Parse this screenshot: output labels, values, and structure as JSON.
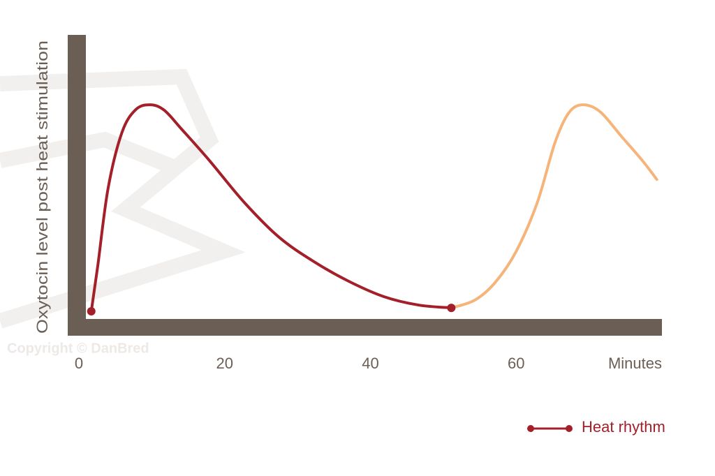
{
  "chart_data": {
    "type": "line",
    "y_label": "Oxytocin level post heat stimulation",
    "x_label": "Minutes",
    "watermark": "Copyright © DanBred",
    "xlim": [
      0,
      80
    ],
    "xticks": [
      0,
      20,
      40,
      60
    ],
    "ylim": [
      0,
      100
    ],
    "series": [
      {
        "name": "Heat rhythm",
        "color": "#a3202a",
        "x": [
          1.7,
          2.6,
          4.0,
          5.9,
          7.8,
          9.8,
          11.7,
          14.1,
          17.9,
          22.7,
          27.5,
          32.3,
          37.0,
          41.8,
          46.6,
          51.1
        ],
        "values": [
          2.7,
          18.9,
          45.9,
          65.6,
          73.7,
          75.4,
          73.5,
          66.8,
          55.8,
          41.0,
          28.7,
          20.1,
          13.3,
          7.9,
          4.9,
          3.9
        ]
      },
      {
        "color": "#f5b57a",
        "x": [
          51.1,
          54.3,
          57.1,
          60.0,
          62.9,
          65.3,
          67.2,
          69.1,
          71.5,
          74.4,
          77.3,
          79.3
        ],
        "values": [
          3.9,
          6.6,
          12.8,
          23.8,
          41.0,
          61.9,
          72.5,
          75.4,
          73.0,
          64.4,
          55.8,
          49.1
        ]
      }
    ]
  }
}
